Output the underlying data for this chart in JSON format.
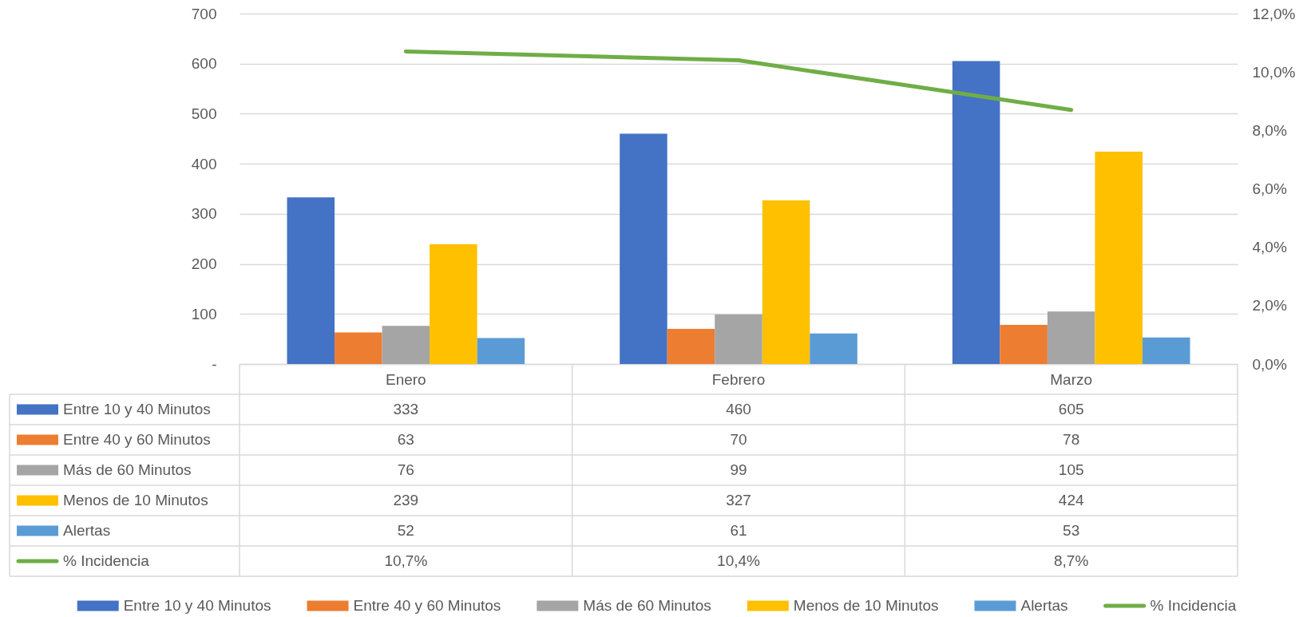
{
  "chart_data": {
    "type": "bar",
    "categories": [
      "Enero",
      "Febrero",
      "Marzo"
    ],
    "series": [
      {
        "name": "Entre 10 y 40 Minutos",
        "color": "#4472c4",
        "values": [
          333,
          460,
          605
        ],
        "value_labels": [
          "333",
          "460",
          "605"
        ]
      },
      {
        "name": "Entre 40 y 60 Minutos",
        "color": "#ed7d31",
        "values": [
          63,
          70,
          78
        ],
        "value_labels": [
          "63",
          "70",
          "78"
        ]
      },
      {
        "name": "Más de 60 Minutos",
        "color": "#a5a5a5",
        "values": [
          76,
          99,
          105
        ],
        "value_labels": [
          "76",
          "99",
          "105"
        ]
      },
      {
        "name": "Menos de 10 Minutos",
        "color": "#ffc000",
        "values": [
          239,
          327,
          424
        ],
        "value_labels": [
          "239",
          "327",
          "424"
        ]
      },
      {
        "name": "Alertas",
        "color": "#5b9bd5",
        "values": [
          52,
          61,
          53
        ],
        "value_labels": [
          "52",
          "61",
          "53"
        ]
      },
      {
        "name": "% Incidencia",
        "type": "line",
        "axis": "y2",
        "color": "#70ad47",
        "values": [
          10.7,
          10.4,
          8.7
        ],
        "value_labels": [
          "10,7%",
          "10,4%",
          "8,7%"
        ]
      }
    ],
    "ylim": [
      0,
      700
    ],
    "yticks": [
      {
        "value": 0,
        "label": "-"
      },
      100,
      200,
      300,
      400,
      500,
      600,
      700
    ],
    "y2lim": [
      0,
      12
    ],
    "y2ticks": [
      {
        "value": 0,
        "label": "0,0%"
      },
      {
        "value": 2,
        "label": "2,0%"
      },
      {
        "value": 4,
        "label": "4,0%"
      },
      {
        "value": 6,
        "label": "6,0%"
      },
      {
        "value": 8,
        "label": "8,0%"
      },
      {
        "value": 10,
        "label": "10,0%"
      },
      {
        "value": 12,
        "label": "12,0%"
      }
    ],
    "grid": "y",
    "legend": "bottom"
  }
}
